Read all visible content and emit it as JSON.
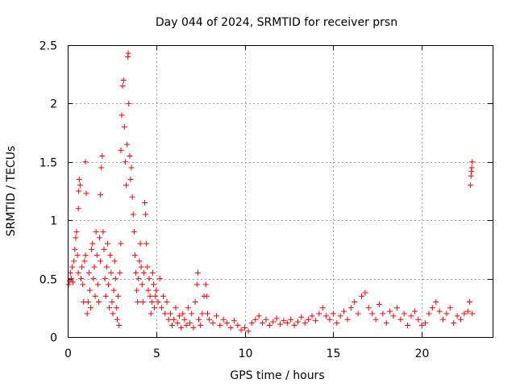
{
  "chart_data": {
    "type": "scatter",
    "title": "Day 044 of 2024, SRMTID for receiver prsn",
    "xlabel": "GPS time / hours",
    "ylabel": "SRMTID / TECUs",
    "xlim": [
      0,
      24
    ],
    "ylim": [
      0,
      2.5
    ],
    "xticks": [
      0,
      5,
      10,
      15,
      20
    ],
    "yticks": [
      0,
      0.5,
      1,
      1.5,
      2,
      2.5
    ],
    "xtick_labels": [
      "0",
      "5",
      "10",
      "15",
      "20"
    ],
    "ytick_labels": [
      "0",
      "0.5",
      "1",
      "1.5",
      "2",
      "2.5"
    ],
    "grid": true,
    "marker": "+",
    "color": "#ff0000",
    "series": [
      {
        "name": "prsn",
        "points": [
          [
            0.05,
            0.45
          ],
          [
            0.1,
            0.48
          ],
          [
            0.15,
            0.55
          ],
          [
            0.2,
            0.5
          ],
          [
            0.25,
            0.6
          ],
          [
            0.3,
            0.47
          ],
          [
            0.35,
            0.65
          ],
          [
            0.4,
            0.75
          ],
          [
            0.45,
            0.85
          ],
          [
            0.5,
            0.9
          ],
          [
            0.55,
            0.7
          ],
          [
            0.6,
            0.55
          ],
          [
            0.6,
            1.1
          ],
          [
            0.62,
            1.25
          ],
          [
            0.65,
            1.35
          ],
          [
            0.7,
            1.3
          ],
          [
            0.75,
            0.5
          ],
          [
            0.8,
            0.6
          ],
          [
            0.85,
            0.45
          ],
          [
            0.9,
            0.3
          ],
          [
            0.95,
            0.65
          ],
          [
            1.0,
            0.7
          ],
          [
            1.0,
            1.5
          ],
          [
            1.05,
            1.23
          ],
          [
            1.1,
            0.2
          ],
          [
            1.15,
            0.3
          ],
          [
            1.2,
            0.55
          ],
          [
            1.25,
            0.4
          ],
          [
            1.3,
            0.25
          ],
          [
            1.35,
            0.75
          ],
          [
            1.4,
            0.8
          ],
          [
            1.45,
            0.5
          ],
          [
            1.5,
            0.6
          ],
          [
            1.55,
            0.35
          ],
          [
            1.6,
            0.9
          ],
          [
            1.65,
            0.7
          ],
          [
            1.7,
            0.45
          ],
          [
            1.75,
            0.3
          ],
          [
            1.8,
            0.85
          ],
          [
            1.85,
            0.65
          ],
          [
            1.85,
            1.22
          ],
          [
            1.9,
            1.45
          ],
          [
            1.95,
            1.55
          ],
          [
            2.0,
            0.9
          ],
          [
            2.05,
            0.75
          ],
          [
            2.1,
            0.5
          ],
          [
            2.15,
            0.35
          ],
          [
            2.2,
            0.6
          ],
          [
            2.25,
            0.8
          ],
          [
            2.3,
            0.45
          ],
          [
            2.35,
            0.25
          ],
          [
            2.4,
            0.7
          ],
          [
            2.45,
            0.55
          ],
          [
            2.5,
            0.3
          ],
          [
            2.55,
            0.2
          ],
          [
            2.6,
            0.4
          ],
          [
            2.65,
            0.65
          ],
          [
            2.7,
            0.5
          ],
          [
            2.75,
            0.25
          ],
          [
            2.8,
            0.15
          ],
          [
            2.85,
            0.35
          ],
          [
            2.9,
            0.1
          ],
          [
            2.95,
            0.55
          ],
          [
            3.0,
            0.8
          ],
          [
            3.0,
            1.6
          ],
          [
            3.05,
            1.9
          ],
          [
            3.1,
            2.15
          ],
          [
            3.15,
            2.2
          ],
          [
            3.2,
            1.8
          ],
          [
            3.25,
            1.5
          ],
          [
            3.3,
            1.3
          ],
          [
            3.35,
            1.65
          ],
          [
            3.4,
            2.4
          ],
          [
            3.42,
            2.43
          ],
          [
            3.45,
            2.0
          ],
          [
            3.5,
            1.55
          ],
          [
            3.55,
            1.35
          ],
          [
            3.6,
            1.45
          ],
          [
            3.65,
            1.2
          ],
          [
            3.7,
            1.05
          ],
          [
            3.75,
            0.9
          ],
          [
            3.8,
            0.7
          ],
          [
            3.85,
            0.55
          ],
          [
            3.9,
            0.4
          ],
          [
            3.95,
            0.3
          ],
          [
            4.0,
            0.5
          ],
          [
            4.05,
            0.65
          ],
          [
            4.1,
            0.8
          ],
          [
            4.15,
            0.6
          ],
          [
            4.2,
            0.45
          ],
          [
            4.25,
            0.3
          ],
          [
            4.3,
            0.55
          ],
          [
            4.35,
            1.15
          ],
          [
            4.4,
            1.05
          ],
          [
            4.45,
            0.8
          ],
          [
            4.5,
            0.6
          ],
          [
            4.55,
            0.4
          ],
          [
            4.6,
            0.5
          ],
          [
            4.65,
            0.35
          ],
          [
            4.7,
            0.2
          ],
          [
            4.75,
            0.3
          ],
          [
            4.8,
            0.55
          ],
          [
            4.85,
            0.45
          ],
          [
            4.9,
            0.25
          ],
          [
            4.95,
            0.35
          ],
          [
            5.0,
            0.4
          ],
          [
            5.1,
            0.3
          ],
          [
            5.2,
            0.5
          ],
          [
            5.3,
            0.25
          ],
          [
            5.4,
            0.35
          ],
          [
            5.5,
            0.2
          ],
          [
            5.6,
            0.3
          ],
          [
            5.7,
            0.15
          ],
          [
            5.8,
            0.2
          ],
          [
            5.9,
            0.1
          ],
          [
            6.0,
            0.15
          ],
          [
            6.1,
            0.25
          ],
          [
            6.2,
            0.12
          ],
          [
            6.3,
            0.18
          ],
          [
            6.4,
            0.08
          ],
          [
            6.5,
            0.2
          ],
          [
            6.6,
            0.15
          ],
          [
            6.7,
            0.1
          ],
          [
            6.8,
            0.25
          ],
          [
            6.9,
            0.12
          ],
          [
            7.0,
            0.2
          ],
          [
            7.1,
            0.08
          ],
          [
            7.2,
            0.3
          ],
          [
            7.3,
            0.45
          ],
          [
            7.35,
            0.55
          ],
          [
            7.4,
            0.15
          ],
          [
            7.5,
            0.1
          ],
          [
            7.6,
            0.2
          ],
          [
            7.7,
            0.35
          ],
          [
            7.8,
            0.45
          ],
          [
            7.85,
            0.35
          ],
          [
            7.9,
            0.2
          ],
          [
            8.0,
            0.15
          ],
          [
            8.2,
            0.12
          ],
          [
            8.4,
            0.18
          ],
          [
            8.6,
            0.1
          ],
          [
            8.8,
            0.15
          ],
          [
            9.0,
            0.12
          ],
          [
            9.2,
            0.08
          ],
          [
            9.4,
            0.14
          ],
          [
            9.6,
            0.1
          ],
          [
            9.8,
            0.06
          ],
          [
            10.0,
            0.08
          ],
          [
            10.2,
            0.05
          ],
          [
            10.4,
            0.12
          ],
          [
            10.6,
            0.15
          ],
          [
            10.8,
            0.18
          ],
          [
            11.0,
            0.12
          ],
          [
            11.2,
            0.15
          ],
          [
            11.4,
            0.1
          ],
          [
            11.6,
            0.13
          ],
          [
            11.8,
            0.16
          ],
          [
            12.0,
            0.11
          ],
          [
            12.2,
            0.14
          ],
          [
            12.4,
            0.12
          ],
          [
            12.6,
            0.15
          ],
          [
            12.8,
            0.1
          ],
          [
            13.0,
            0.13
          ],
          [
            13.2,
            0.17
          ],
          [
            13.4,
            0.12
          ],
          [
            13.6,
            0.15
          ],
          [
            13.8,
            0.18
          ],
          [
            14.0,
            0.14
          ],
          [
            14.2,
            0.2
          ],
          [
            14.4,
            0.25
          ],
          [
            14.6,
            0.18
          ],
          [
            14.8,
            0.15
          ],
          [
            15.0,
            0.2
          ],
          [
            15.2,
            0.12
          ],
          [
            15.4,
            0.18
          ],
          [
            15.6,
            0.22
          ],
          [
            15.8,
            0.15
          ],
          [
            16.0,
            0.25
          ],
          [
            16.2,
            0.3
          ],
          [
            16.4,
            0.2
          ],
          [
            16.6,
            0.35
          ],
          [
            16.8,
            0.38
          ],
          [
            17.0,
            0.25
          ],
          [
            17.2,
            0.2
          ],
          [
            17.4,
            0.15
          ],
          [
            17.6,
            0.28
          ],
          [
            17.8,
            0.2
          ],
          [
            18.0,
            0.12
          ],
          [
            18.2,
            0.22
          ],
          [
            18.4,
            0.18
          ],
          [
            18.6,
            0.25
          ],
          [
            18.8,
            0.15
          ],
          [
            19.0,
            0.2
          ],
          [
            19.2,
            0.1
          ],
          [
            19.4,
            0.18
          ],
          [
            19.6,
            0.22
          ],
          [
            19.8,
            0.15
          ],
          [
            20.0,
            0.1
          ],
          [
            20.2,
            0.12
          ],
          [
            20.4,
            0.2
          ],
          [
            20.6,
            0.25
          ],
          [
            20.8,
            0.3
          ],
          [
            21.0,
            0.22
          ],
          [
            21.2,
            0.15
          ],
          [
            21.4,
            0.2
          ],
          [
            21.6,
            0.25
          ],
          [
            21.8,
            0.12
          ],
          [
            22.0,
            0.18
          ],
          [
            22.2,
            0.15
          ],
          [
            22.4,
            0.2
          ],
          [
            22.6,
            0.22
          ],
          [
            22.7,
            0.3
          ],
          [
            22.75,
            1.3
          ],
          [
            22.78,
            1.38
          ],
          [
            22.8,
            1.42
          ],
          [
            22.82,
            1.45
          ],
          [
            22.85,
            1.5
          ],
          [
            22.85,
            0.2
          ]
        ]
      }
    ]
  }
}
